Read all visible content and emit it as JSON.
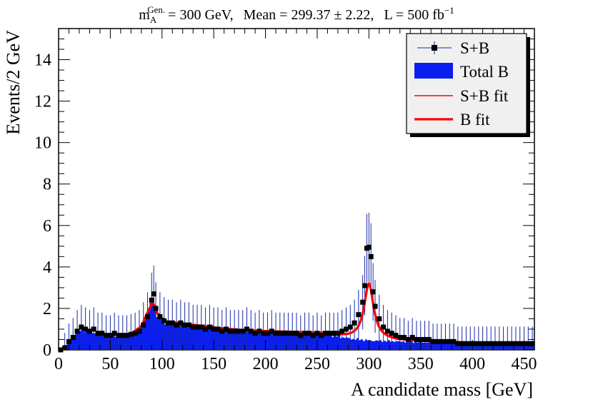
{
  "chart_data": {
    "type": "histogram",
    "title": {
      "mass_sym": "m",
      "mass_sup": "Gen.",
      "mass_sub": "A",
      "mass_val": "= 300 GeV,",
      "mean_text": "Mean = 299.37 ± 2.22,",
      "lumi_text": "L = 500 fb",
      "lumi_sup": "−1"
    },
    "xlabel": "A candidate mass [GeV]",
    "ylabel": "Events/2 GeV",
    "xlim": [
      0,
      460
    ],
    "ylim": [
      0,
      15.5
    ],
    "xticks": [
      0,
      50,
      100,
      150,
      200,
      250,
      300,
      350,
      400,
      450
    ],
    "yticks": [
      0,
      2,
      4,
      6,
      8,
      10,
      12,
      14
    ],
    "bin_width": 2,
    "legend": {
      "position": "top-right",
      "entries": [
        "S+B",
        "Total B",
        "S+B fit",
        "B fit"
      ]
    },
    "colors": {
      "background_fill": "#0a1ef0",
      "data_points": "#000000",
      "error_bars": "#1a2aa8",
      "fit_line": "#ff0000",
      "legend_bg": "#f0f0f0"
    },
    "fit_range": [
      72,
      460
    ],
    "background_model": [
      {
        "x": 0,
        "y": 0.0
      },
      {
        "x": 6,
        "y": 0.2
      },
      {
        "x": 12,
        "y": 0.5
      },
      {
        "x": 18,
        "y": 0.9
      },
      {
        "x": 24,
        "y": 1.0
      },
      {
        "x": 30,
        "y": 0.9
      },
      {
        "x": 40,
        "y": 0.75
      },
      {
        "x": 55,
        "y": 0.7
      },
      {
        "x": 70,
        "y": 0.75
      },
      {
        "x": 80,
        "y": 1.1
      },
      {
        "x": 86,
        "y": 1.8
      },
      {
        "x": 91,
        "y": 2.3
      },
      {
        "x": 96,
        "y": 1.7
      },
      {
        "x": 102,
        "y": 1.35
      },
      {
        "x": 120,
        "y": 1.25
      },
      {
        "x": 150,
        "y": 1.05
      },
      {
        "x": 180,
        "y": 0.9
      },
      {
        "x": 210,
        "y": 0.85
      },
      {
        "x": 240,
        "y": 0.8
      },
      {
        "x": 260,
        "y": 0.75
      },
      {
        "x": 280,
        "y": 0.55
      },
      {
        "x": 300,
        "y": 0.45
      },
      {
        "x": 330,
        "y": 0.4
      },
      {
        "x": 360,
        "y": 0.35
      },
      {
        "x": 400,
        "y": 0.3
      },
      {
        "x": 460,
        "y": 0.28
      }
    ],
    "signal_peak": {
      "mean": 300,
      "width": 5.5,
      "amplitude": 2.35
    },
    "data_points": [
      {
        "x": 2,
        "y": 0.0
      },
      {
        "x": 6,
        "y": 0.1
      },
      {
        "x": 10,
        "y": 0.4
      },
      {
        "x": 14,
        "y": 0.6
      },
      {
        "x": 18,
        "y": 0.9
      },
      {
        "x": 22,
        "y": 1.1
      },
      {
        "x": 26,
        "y": 1.0
      },
      {
        "x": 30,
        "y": 0.9
      },
      {
        "x": 34,
        "y": 1.0
      },
      {
        "x": 38,
        "y": 0.8
      },
      {
        "x": 42,
        "y": 0.8
      },
      {
        "x": 46,
        "y": 0.7
      },
      {
        "x": 50,
        "y": 0.7
      },
      {
        "x": 54,
        "y": 0.8
      },
      {
        "x": 58,
        "y": 0.7
      },
      {
        "x": 62,
        "y": 0.7
      },
      {
        "x": 66,
        "y": 0.7
      },
      {
        "x": 70,
        "y": 0.75
      },
      {
        "x": 74,
        "y": 0.8
      },
      {
        "x": 78,
        "y": 0.9
      },
      {
        "x": 82,
        "y": 1.2
      },
      {
        "x": 86,
        "y": 1.6
      },
      {
        "x": 90,
        "y": 2.4
      },
      {
        "x": 92,
        "y": 2.7
      },
      {
        "x": 94,
        "y": 2.0
      },
      {
        "x": 98,
        "y": 1.6
      },
      {
        "x": 102,
        "y": 1.4
      },
      {
        "x": 106,
        "y": 1.3
      },
      {
        "x": 110,
        "y": 1.3
      },
      {
        "x": 114,
        "y": 1.2
      },
      {
        "x": 118,
        "y": 1.3
      },
      {
        "x": 122,
        "y": 1.2
      },
      {
        "x": 126,
        "y": 1.2
      },
      {
        "x": 130,
        "y": 1.1
      },
      {
        "x": 134,
        "y": 1.1
      },
      {
        "x": 138,
        "y": 1.1
      },
      {
        "x": 142,
        "y": 1.0
      },
      {
        "x": 146,
        "y": 1.1
      },
      {
        "x": 150,
        "y": 1.0
      },
      {
        "x": 154,
        "y": 1.0
      },
      {
        "x": 158,
        "y": 0.9
      },
      {
        "x": 162,
        "y": 1.0
      },
      {
        "x": 166,
        "y": 0.9
      },
      {
        "x": 170,
        "y": 0.9
      },
      {
        "x": 174,
        "y": 0.9
      },
      {
        "x": 178,
        "y": 0.9
      },
      {
        "x": 182,
        "y": 1.0
      },
      {
        "x": 186,
        "y": 0.9
      },
      {
        "x": 190,
        "y": 0.8
      },
      {
        "x": 194,
        "y": 0.9
      },
      {
        "x": 198,
        "y": 0.8
      },
      {
        "x": 202,
        "y": 0.8
      },
      {
        "x": 206,
        "y": 0.9
      },
      {
        "x": 210,
        "y": 0.8
      },
      {
        "x": 214,
        "y": 0.8
      },
      {
        "x": 218,
        "y": 0.8
      },
      {
        "x": 222,
        "y": 0.8
      },
      {
        "x": 226,
        "y": 0.8
      },
      {
        "x": 230,
        "y": 0.8
      },
      {
        "x": 234,
        "y": 0.7
      },
      {
        "x": 238,
        "y": 0.8
      },
      {
        "x": 242,
        "y": 0.8
      },
      {
        "x": 246,
        "y": 0.7
      },
      {
        "x": 250,
        "y": 0.8
      },
      {
        "x": 254,
        "y": 0.7
      },
      {
        "x": 258,
        "y": 0.8
      },
      {
        "x": 262,
        "y": 0.8
      },
      {
        "x": 266,
        "y": 0.8
      },
      {
        "x": 270,
        "y": 0.8
      },
      {
        "x": 274,
        "y": 0.9
      },
      {
        "x": 278,
        "y": 1.0
      },
      {
        "x": 282,
        "y": 1.1
      },
      {
        "x": 286,
        "y": 1.3
      },
      {
        "x": 290,
        "y": 1.7
      },
      {
        "x": 294,
        "y": 2.3
      },
      {
        "x": 296,
        "y": 3.1
      },
      {
        "x": 298,
        "y": 4.9
      },
      {
        "x": 300,
        "y": 4.95
      },
      {
        "x": 302,
        "y": 4.5
      },
      {
        "x": 304,
        "y": 2.8
      },
      {
        "x": 306,
        "y": 2.1
      },
      {
        "x": 310,
        "y": 1.5
      },
      {
        "x": 314,
        "y": 1.1
      },
      {
        "x": 318,
        "y": 0.9
      },
      {
        "x": 322,
        "y": 0.8
      },
      {
        "x": 326,
        "y": 0.7
      },
      {
        "x": 330,
        "y": 0.6
      },
      {
        "x": 334,
        "y": 0.6
      },
      {
        "x": 338,
        "y": 0.5
      },
      {
        "x": 342,
        "y": 0.6
      },
      {
        "x": 346,
        "y": 0.5
      },
      {
        "x": 350,
        "y": 0.5
      },
      {
        "x": 354,
        "y": 0.5
      },
      {
        "x": 358,
        "y": 0.5
      },
      {
        "x": 362,
        "y": 0.4
      },
      {
        "x": 366,
        "y": 0.4
      },
      {
        "x": 370,
        "y": 0.4
      },
      {
        "x": 374,
        "y": 0.4
      },
      {
        "x": 378,
        "y": 0.4
      },
      {
        "x": 382,
        "y": 0.4
      },
      {
        "x": 386,
        "y": 0.3
      },
      {
        "x": 390,
        "y": 0.3
      },
      {
        "x": 394,
        "y": 0.3
      },
      {
        "x": 398,
        "y": 0.3
      },
      {
        "x": 402,
        "y": 0.3
      },
      {
        "x": 406,
        "y": 0.3
      },
      {
        "x": 410,
        "y": 0.3
      },
      {
        "x": 414,
        "y": 0.3
      },
      {
        "x": 418,
        "y": 0.3
      },
      {
        "x": 422,
        "y": 0.3
      },
      {
        "x": 426,
        "y": 0.3
      },
      {
        "x": 430,
        "y": 0.3
      },
      {
        "x": 434,
        "y": 0.3
      },
      {
        "x": 438,
        "y": 0.3
      },
      {
        "x": 442,
        "y": 0.3
      },
      {
        "x": 446,
        "y": 0.3
      },
      {
        "x": 450,
        "y": 0.3
      },
      {
        "x": 454,
        "y": 0.3
      },
      {
        "x": 458,
        "y": 0.3
      }
    ]
  }
}
